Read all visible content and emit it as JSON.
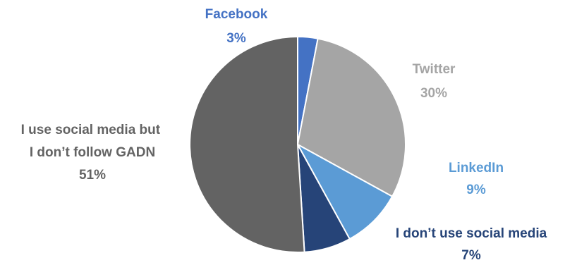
{
  "chart_data": {
    "type": "pie",
    "slices": [
      {
        "label": "Facebook",
        "value": 3,
        "value_label": "3%",
        "color": "#4472C4"
      },
      {
        "label": "Twitter",
        "value": 30,
        "value_label": "30%",
        "color": "#A5A5A5"
      },
      {
        "label": "LinkedIn",
        "value": 9,
        "value_label": "9%",
        "color": "#5B9BD5"
      },
      {
        "label": "I don’t use social media",
        "value": 7,
        "value_label": "7%",
        "color": "#264478"
      },
      {
        "label": "I use social media but I don’t follow GADN",
        "value": 51,
        "value_label": "51%",
        "color": "#636363"
      }
    ],
    "start_angle": "12 o'clock",
    "direction": "clockwise",
    "legend": "none (data labels outside slices)"
  }
}
